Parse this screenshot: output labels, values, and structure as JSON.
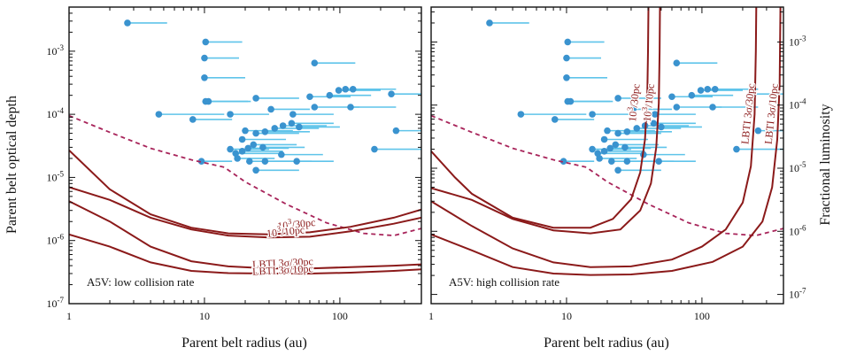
{
  "chart_data": {
    "type": "scatter",
    "colors": {
      "points": "#3a93cf",
      "whiskers": "#5fc4ea",
      "curves": "#8b1a1a",
      "dashed": "#a8245a",
      "axes": "#111111"
    },
    "xlabel": "Parent belt radius (au)",
    "ylabel_left": "Parent belt optical depth",
    "ylabel_right": "Fractional luminosity",
    "x_scale": "log",
    "y_scale": "log",
    "xlim": [
      1,
      400
    ],
    "ylim": [
      1e-07,
      0.005
    ],
    "x_ticks": [
      {
        "v": 1,
        "label": "1"
      },
      {
        "v": 10,
        "label": "10"
      },
      {
        "v": 100,
        "label": "100"
      }
    ],
    "y_ticks_left": [
      {
        "v": 1e-07,
        "label": "10",
        "exp": "-7"
      },
      {
        "v": 1e-06,
        "label": "10",
        "exp": "-6"
      },
      {
        "v": 1e-05,
        "label": "10",
        "exp": "-5"
      },
      {
        "v": 0.0001,
        "label": "10",
        "exp": "-4"
      },
      {
        "v": 0.001,
        "label": "10",
        "exp": "-3"
      }
    ],
    "y_ticks_right": [
      {
        "v": 1.4e-07,
        "label": "10",
        "exp": "-7"
      },
      {
        "v": 1.4e-06,
        "label": "10",
        "exp": "-6"
      },
      {
        "v": 1.4e-05,
        "label": "10",
        "exp": "-5"
      },
      {
        "v": 0.00014,
        "label": "10",
        "exp": "-4"
      },
      {
        "v": 0.0014,
        "label": "10",
        "exp": "-3"
      }
    ],
    "points": [
      {
        "x": 2.7,
        "x_hi": 5.3,
        "y": 0.0028
      },
      {
        "x": 10.2,
        "x_hi": 19,
        "y": 0.0014
      },
      {
        "x": 10,
        "x_hi": 18,
        "y": 0.00078
      },
      {
        "x": 10,
        "x_hi": 20,
        "y": 0.00038
      },
      {
        "x": 65,
        "x_hi": 130,
        "y": 0.00065
      },
      {
        "x": 10.2,
        "x_hi": 21,
        "y": 0.00016
      },
      {
        "x": 10.7,
        "x_hi": 22,
        "y": 0.00016
      },
      {
        "x": 4.6,
        "x_hi": 14,
        "y": 0.0001
      },
      {
        "x": 8.2,
        "x_hi": 16,
        "y": 8.3e-05
      },
      {
        "x": 15.5,
        "x_hi": 30,
        "y": 0.0001
      },
      {
        "x": 24,
        "x_hi": 50,
        "y": 0.00018
      },
      {
        "x": 31,
        "x_hi": 60,
        "y": 0.00012
      },
      {
        "x": 45,
        "x_hi": 90,
        "y": 0.0001
      },
      {
        "x": 60,
        "x_hi": 120,
        "y": 0.00019
      },
      {
        "x": 84,
        "x_hi": 170,
        "y": 0.0002
      },
      {
        "x": 98,
        "x_hi": 200,
        "y": 0.00024
      },
      {
        "x": 110,
        "x_hi": 220,
        "y": 0.00025
      },
      {
        "x": 125,
        "x_hi": 260,
        "y": 0.00025
      },
      {
        "x": 240,
        "x_hi": 400,
        "y": 0.00021
      },
      {
        "x": 65,
        "x_hi": 140,
        "y": 0.00013
      },
      {
        "x": 120,
        "x_hi": 260,
        "y": 0.00013
      },
      {
        "x": 260,
        "x_hi": 400,
        "y": 5.5e-05
      },
      {
        "x": 20,
        "x_hi": 45,
        "y": 5.5e-05
      },
      {
        "x": 24,
        "x_hi": 50,
        "y": 5e-05
      },
      {
        "x": 28,
        "x_hi": 60,
        "y": 5.3e-05
      },
      {
        "x": 33,
        "x_hi": 70,
        "y": 6e-05
      },
      {
        "x": 38,
        "x_hi": 80,
        "y": 6.6e-05
      },
      {
        "x": 44,
        "x_hi": 90,
        "y": 7.2e-05
      },
      {
        "x": 50,
        "x_hi": 100,
        "y": 6.3e-05
      },
      {
        "x": 19,
        "x_hi": 40,
        "y": 4e-05
      },
      {
        "x": 23,
        "x_hi": 48,
        "y": 3.3e-05
      },
      {
        "x": 27,
        "x_hi": 55,
        "y": 3e-05
      },
      {
        "x": 21,
        "x_hi": 42,
        "y": 2.9e-05
      },
      {
        "x": 15.5,
        "x_hi": 30,
        "y": 2.8e-05
      },
      {
        "x": 17,
        "x_hi": 36,
        "y": 2.4e-05
      },
      {
        "x": 19,
        "x_hi": 38,
        "y": 2.6e-05
      },
      {
        "x": 17.5,
        "x_hi": 33,
        "y": 2e-05
      },
      {
        "x": 21.5,
        "x_hi": 45,
        "y": 1.8e-05
      },
      {
        "x": 28,
        "x_hi": 62,
        "y": 1.8e-05
      },
      {
        "x": 37,
        "x_hi": 75,
        "y": 2.3e-05
      },
      {
        "x": 48,
        "x_hi": 90,
        "y": 1.8e-05
      },
      {
        "x": 24,
        "x_hi": 50,
        "y": 1.3e-05
      },
      {
        "x": 9.5,
        "x_hi": 16,
        "y": 1.8e-05
      },
      {
        "x": 180,
        "x_hi": 400,
        "y": 2.8e-05
      }
    ],
    "dashed_curve": [
      [
        1,
        9.5e-05
      ],
      [
        2,
        5.2e-05
      ],
      [
        4,
        2.9e-05
      ],
      [
        8,
        1.9e-05
      ],
      [
        14,
        1.45e-05
      ],
      [
        20,
        8.5e-06
      ],
      [
        40,
        3.8e-06
      ],
      [
        80,
        1.9e-06
      ],
      [
        150,
        1.3e-06
      ],
      [
        250,
        1.2e-06
      ],
      [
        400,
        1.55e-06
      ]
    ],
    "panels": [
      {
        "label": "A5V: low collision rate",
        "show_left_axis": true,
        "show_right_axis": false,
        "curves": [
          {
            "name": "10^3/30pc",
            "points": [
              [
                1,
                2.7e-05
              ],
              [
                2,
                6.5e-06
              ],
              [
                4,
                2.6e-06
              ],
              [
                8,
                1.6e-06
              ],
              [
                15,
                1.3e-06
              ],
              [
                30,
                1.25e-06
              ],
              [
                60,
                1.35e-06
              ],
              [
                120,
                1.65e-06
              ],
              [
                250,
                2.3e-06
              ],
              [
                400,
                3.1e-06
              ]
            ]
          },
          {
            "name": "10^3/10pc",
            "points": [
              [
                1,
                7e-06
              ],
              [
                2,
                4.4e-06
              ],
              [
                4,
                2.3e-06
              ],
              [
                8,
                1.5e-06
              ],
              [
                15,
                1.2e-06
              ],
              [
                30,
                1.12e-06
              ],
              [
                60,
                1.15e-06
              ],
              [
                120,
                1.4e-06
              ],
              [
                250,
                1.85e-06
              ],
              [
                400,
                2.3e-06
              ]
            ]
          },
          {
            "name": "LBTI 3σ/30pc",
            "points": [
              [
                1,
                4.2e-06
              ],
              [
                2,
                2e-06
              ],
              [
                4,
                8e-07
              ],
              [
                8,
                4.7e-07
              ],
              [
                15,
                3.9e-07
              ],
              [
                30,
                3.6e-07
              ],
              [
                60,
                3.6e-07
              ],
              [
                120,
                3.8e-07
              ],
              [
                250,
                4e-07
              ],
              [
                400,
                4.2e-07
              ]
            ]
          },
          {
            "name": "LBTI 3σ/10pc",
            "points": [
              [
                1,
                1.25e-06
              ],
              [
                2,
                8e-07
              ],
              [
                4,
                4.5e-07
              ],
              [
                8,
                3.3e-07
              ],
              [
                15,
                3.05e-07
              ],
              [
                30,
                3e-07
              ],
              [
                60,
                3e-07
              ],
              [
                120,
                3.1e-07
              ],
              [
                250,
                3.3e-07
              ],
              [
                400,
                3.5e-07
              ]
            ]
          }
        ],
        "curve_labels": [
          {
            "text": "10",
            "sup": "3",
            "rest": "/30pc",
            "x": 48,
            "y": 1.6e-06,
            "rot": -6
          },
          {
            "text": "10",
            "sup": "3",
            "rest": "/10pc",
            "x": 40,
            "y": 1.22e-06,
            "rot": -6
          },
          {
            "text": "LBTI 3σ/30pc",
            "x": 38,
            "y": 3.9e-07,
            "rot": -3
          },
          {
            "text": "LBTI 3σ/10pc",
            "x": 38,
            "y": 3e-07,
            "rot": -3
          }
        ]
      },
      {
        "label": "A5V: high collision rate",
        "show_left_axis": false,
        "show_right_axis": true,
        "curves": [
          {
            "name": "10^3/30pc",
            "points": [
              [
                1,
                2.6e-05
              ],
              [
                1.5,
                1e-05
              ],
              [
                2,
                5.5e-06
              ],
              [
                4,
                2.3e-06
              ],
              [
                8,
                1.6e-06
              ],
              [
                15,
                1.6e-06
              ],
              [
                22,
                2.2e-06
              ],
              [
                30,
                4.5e-06
              ],
              [
                35,
                1.2e-05
              ],
              [
                38,
                4e-05
              ],
              [
                39.5,
                0.0002
              ],
              [
                40,
                0.001
              ],
              [
                40.3,
                0.005
              ]
            ]
          },
          {
            "name": "10^3/10pc",
            "points": [
              [
                1,
                6.8e-06
              ],
              [
                2,
                4.4e-06
              ],
              [
                4,
                2.2e-06
              ],
              [
                8,
                1.45e-06
              ],
              [
                15,
                1.3e-06
              ],
              [
                25,
                1.5e-06
              ],
              [
                35,
                3e-06
              ],
              [
                42,
                8e-06
              ],
              [
                46,
                3e-05
              ],
              [
                48,
                0.00015
              ],
              [
                48.7,
                0.001
              ],
              [
                49,
                0.005
              ]
            ]
          },
          {
            "name": "LBTI 3σ/30pc",
            "points": [
              [
                1,
                4.2e-06
              ],
              [
                2,
                1.7e-06
              ],
              [
                4,
                7.5e-07
              ],
              [
                8,
                4.5e-07
              ],
              [
                15,
                3.8e-07
              ],
              [
                30,
                3.9e-07
              ],
              [
                60,
                5e-07
              ],
              [
                100,
                8e-07
              ],
              [
                150,
                1.5e-06
              ],
              [
                200,
                4e-06
              ],
              [
                230,
                1.5e-05
              ],
              [
                245,
                0.0001
              ],
              [
                250,
                0.001
              ],
              [
                252,
                0.005
              ]
            ]
          },
          {
            "name": "LBTI 3σ/10pc",
            "points": [
              [
                1,
                1.25e-06
              ],
              [
                2,
                7e-07
              ],
              [
                4,
                3.8e-07
              ],
              [
                8,
                3e-07
              ],
              [
                15,
                2.85e-07
              ],
              [
                30,
                2.9e-07
              ],
              [
                60,
                3.3e-07
              ],
              [
                120,
                4.6e-07
              ],
              [
                200,
                8e-07
              ],
              [
                280,
                2e-06
              ],
              [
                330,
                7e-06
              ],
              [
                360,
                4e-05
              ],
              [
                375,
                0.0003
              ],
              [
                380,
                0.005
              ]
            ]
          }
        ],
        "curve_labels": [
          {
            "text": "10",
            "sup": "3",
            "rest": "/30pc",
            "x": 33.5,
            "y": 0.00015,
            "rot": -84
          },
          {
            "text": "10",
            "sup": "3",
            "rest": "/10pc",
            "x": 43,
            "y": 0.00015,
            "rot": -84
          },
          {
            "text": "LBTI 3σ/30pc",
            "x": 232,
            "y": 0.0001,
            "rot": -84
          },
          {
            "text": "LBTI 3σ/10pc",
            "x": 345,
            "y": 0.0001,
            "rot": -84
          }
        ]
      }
    ]
  }
}
